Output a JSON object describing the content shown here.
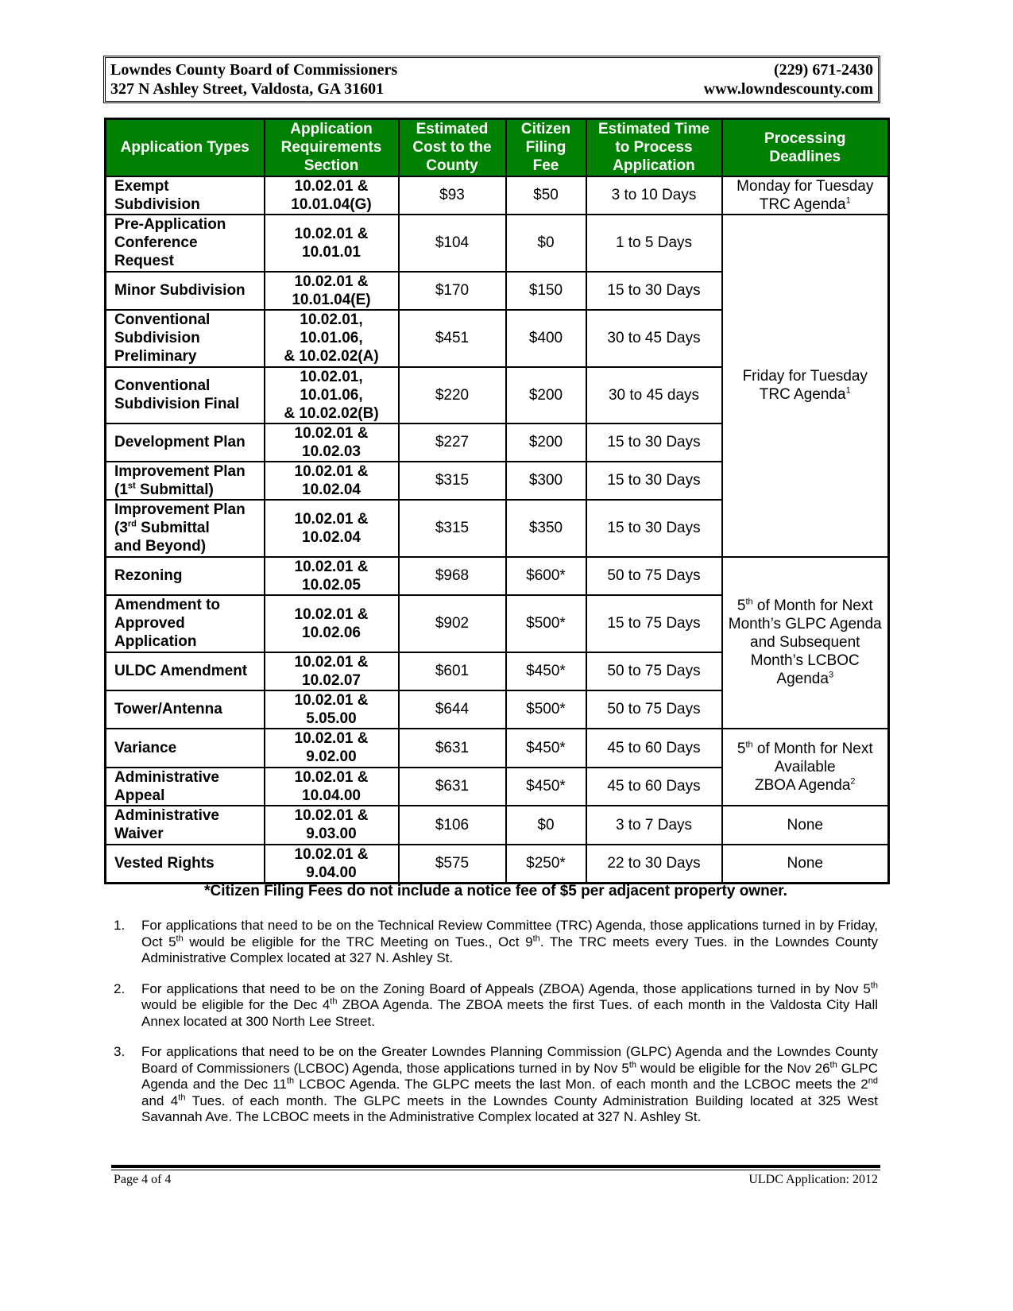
{
  "header": {
    "org": "Lowndes County Board of Commissioners",
    "phone": "(229) 671-2430",
    "address": "327 N Ashley Street, Valdosta, GA  31601",
    "website": "www.lowndescounty.com"
  },
  "table": {
    "columns": [
      "Application Types",
      "Application Requirements Section",
      "Estimated Cost to the County",
      "Citizen Filing Fee",
      "Estimated Time to Process Application",
      "Processing Deadlines"
    ],
    "groups": [
      {
        "deadline": [
          "Monday for Tuesday TRC Agenda",
          {
            "sup": "1"
          }
        ],
        "rows": [
          [
            "Exempt\nSubdivision",
            "10.02.01 &\n10.01.04(G)",
            "$93",
            "$50",
            "3 to 10 Days"
          ]
        ]
      },
      {
        "deadline": [
          "Friday  for Tuesday TRC Agenda",
          {
            "sup": "1"
          }
        ],
        "rows": [
          [
            "Pre-Application\nConference\nRequest",
            "10.02.01 &\n10.01.01",
            "$104",
            "$0",
            "1 to 5 Days"
          ],
          [
            "Minor Subdivision",
            "10.02.01 &\n10.01.04(E)",
            "$170",
            "$150",
            "15 to 30 Days"
          ],
          [
            "Conventional\nSubdivision\nPreliminary",
            "10.02.01,\n10.01.06,\n& 10.02.02(A)",
            "$451",
            "$400",
            "30 to 45 Days"
          ],
          [
            "Conventional\nSubdivision Final",
            "10.02.01,\n10.01.06,\n& 10.02.02(B)",
            "$220",
            "$200",
            "30 to 45 days"
          ],
          [
            "Development Plan",
            "10.02.01 &\n10.02.03",
            "$227",
            "$200",
            "15 to 30 Days"
          ],
          [
            [
              "Improvement Plan\n(1",
              {
                "sup": "st"
              },
              " Submittal)"
            ],
            "10.02.01 &\n10.02.04",
            "$315",
            "$300",
            "15 to 30 Days"
          ],
          [
            [
              "Improvement Plan\n(3",
              {
                "sup": "rd"
              },
              " Submittal\nand Beyond)"
            ],
            "10.02.01 &\n10.02.04",
            "$315",
            "$350",
            "15 to 30 Days"
          ]
        ]
      },
      {
        "deadline": [
          "5",
          {
            "sup": "th"
          },
          " of Month for Next Month’s GLPC Agenda and Subsequent Month’s LCBOC Agenda",
          {
            "sup": "3"
          }
        ],
        "rows": [
          [
            "Rezoning",
            "10.02.01 &\n10.02.05",
            "$968",
            "$600*",
            "50 to 75 Days"
          ],
          [
            "Amendment to\nApproved\nApplication",
            "10.02.01 &\n10.02.06",
            "$902",
            "$500*",
            "15 to 75 Days"
          ],
          [
            "ULDC Amendment",
            "10.02.01 &\n10.02.07",
            "$601",
            "$450*",
            "50 to 75 Days"
          ],
          [
            "Tower/Antenna",
            "10.02.01 &\n5.05.00",
            "$644",
            "$500*",
            "50 to 75 Days"
          ]
        ]
      },
      {
        "deadline": [
          "5",
          {
            "sup": "th"
          },
          " of Month for Next Available\nZBOA Agenda",
          {
            "sup": "2"
          }
        ],
        "rows": [
          [
            "Variance",
            "10.02.01 &\n9.02.00",
            "$631",
            "$450*",
            "45 to 60 Days"
          ],
          [
            "Administrative\nAppeal",
            "10.02.01 &\n10.04.00",
            "$631",
            "$450*",
            "45 to 60 Days"
          ]
        ]
      },
      {
        "deadline": [
          "None"
        ],
        "rows": [
          [
            "Administrative\nWaiver",
            "10.02.01 &\n9.03.00",
            "$106",
            "$0",
            "3 to 7 Days"
          ]
        ]
      },
      {
        "deadline": [
          "None"
        ],
        "rows": [
          [
            "Vested Rights",
            "10.02.01 &\n9.04.00",
            "$575",
            "$250*",
            "22 to 30 Days"
          ]
        ]
      }
    ]
  },
  "fee_note": "*Citizen Filing Fees do not include a notice fee of $5 per adjacent property owner.",
  "notes": [
    {
      "number": "1.",
      "text": [
        "For applications that need to be on the Technical Review Committee (TRC) Agenda, those applications turned in by Friday, Oct 5",
        {
          "sup": "th"
        },
        " would be eligible for the TRC Meeting on Tues., Oct 9",
        {
          "sup": "th"
        },
        ". The TRC meets every Tues. in the Lowndes County Administrative Complex located at 327 N. Ashley St."
      ]
    },
    {
      "number": "2.",
      "text": [
        "For applications that need to be on the Zoning Board of Appeals (ZBOA) Agenda, those applications turned in by Nov 5",
        {
          "sup": "th"
        },
        " would be eligible for the Dec 4",
        {
          "sup": "th"
        },
        " ZBOA Agenda.  The ZBOA meets the first Tues. of each month in the Valdosta City Hall Annex located at 300 North Lee Street."
      ]
    },
    {
      "number": "3.",
      "text": [
        "For applications that need to be on the Greater Lowndes Planning Commission (GLPC) Agenda and the Lowndes County Board of Commissioners (LCBOC) Agenda, those applications turned in by Nov 5",
        {
          "sup": "th"
        },
        " would be eligible for the Nov 26",
        {
          "sup": "th"
        },
        " GLPC Agenda and the Dec 11",
        {
          "sup": "th"
        },
        " LCBOC Agenda.  The GLPC meets the last Mon. of each month and the LCBOC meets the 2",
        {
          "sup": "nd"
        },
        " and 4",
        {
          "sup": "th"
        },
        " Tues. of each month.  The GLPC meets in the Lowndes County Administration Building located at 325 West Savannah Ave. The LCBOC meets in the Administrative Complex located at 327 N. Ashley St."
      ]
    }
  ],
  "footer": {
    "page": "Page 4 of 4",
    "doc": "ULDC Application: 2012"
  }
}
